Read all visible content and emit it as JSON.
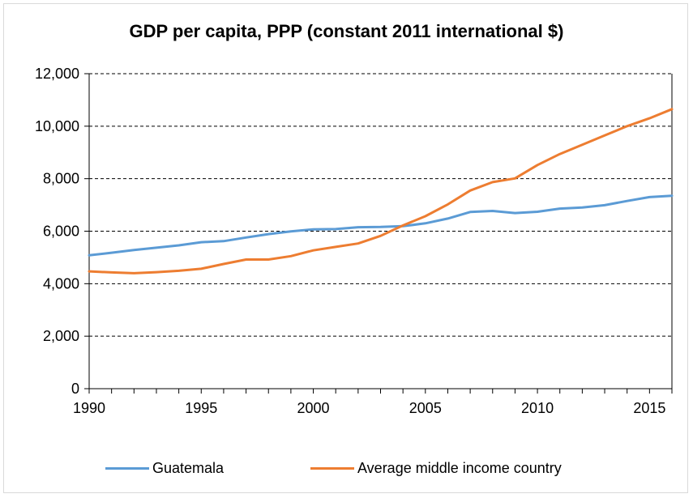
{
  "chart_data": {
    "type": "line",
    "title": "GDP per capita, PPP (constant 2011 international $)",
    "xlabel": "",
    "ylabel": "",
    "xlim": [
      1990,
      2016
    ],
    "ylim": [
      0,
      12000
    ],
    "x_ticks": [
      1990,
      1995,
      2000,
      2005,
      2010,
      2015
    ],
    "x_tick_labels": [
      "1990",
      "1995",
      "2000",
      "2005",
      "2010",
      "2015"
    ],
    "y_ticks": [
      0,
      2000,
      4000,
      6000,
      8000,
      10000,
      12000
    ],
    "y_tick_labels": [
      "0",
      "2,000",
      "4,000",
      "6,000",
      "8,000",
      "10,000",
      "12,000"
    ],
    "grid": "horizontal dashed",
    "legend_position": "bottom",
    "x": [
      1990,
      1991,
      1992,
      1993,
      1994,
      1995,
      1996,
      1997,
      1998,
      1999,
      2000,
      2001,
      2002,
      2003,
      2004,
      2005,
      2006,
      2007,
      2008,
      2009,
      2010,
      2011,
      2012,
      2013,
      2014,
      2015,
      2016
    ],
    "series": [
      {
        "name": "Guatemala",
        "color": "#5b9bd5",
        "values": [
          5080,
          5180,
          5280,
          5370,
          5460,
          5580,
          5620,
          5760,
          5890,
          5990,
          6070,
          6080,
          6150,
          6160,
          6190,
          6300,
          6480,
          6730,
          6770,
          6690,
          6740,
          6860,
          6900,
          6990,
          7150,
          7300,
          7350
        ]
      },
      {
        "name": "Average middle income country",
        "color": "#ed7d31",
        "values": [
          4470,
          4430,
          4400,
          4440,
          4490,
          4570,
          4750,
          4920,
          4920,
          5050,
          5270,
          5400,
          5530,
          5820,
          6220,
          6570,
          7020,
          7550,
          7870,
          8010,
          8520,
          8940,
          9290,
          9650,
          10000,
          10300,
          10650
        ]
      }
    ]
  }
}
